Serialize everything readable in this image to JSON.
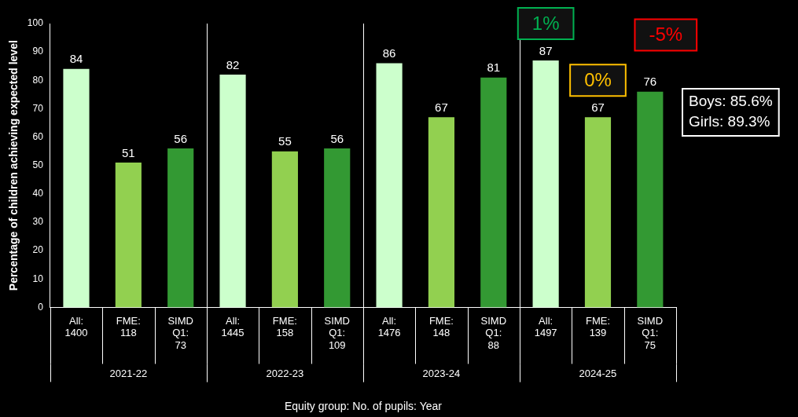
{
  "chart_data": {
    "type": "bar",
    "xlabel": "Equity group: No. of pupils: Year",
    "ylabel": "Percentage of children achieving expected level",
    "categories": [
      "All: 1400",
      "FME: 118",
      "SIMD Q1: 73",
      "All: 1445",
      "FME: 158",
      "SIMD Q1: 109",
      "All: 1476",
      "FME: 148",
      "SIMD Q1: 88",
      "All: 1497",
      "FME: 139",
      "SIMD Q1: 75"
    ],
    "values": [
      84,
      51,
      56,
      82,
      55,
      56,
      86,
      67,
      81,
      87,
      67,
      76
    ],
    "colors": [
      "#ccffcc",
      "#92d050",
      "#339933",
      "#ccffcc",
      "#92d050",
      "#339933",
      "#ccffcc",
      "#92d050",
      "#339933",
      "#ccffcc",
      "#92d050",
      "#339933"
    ],
    "ylim": [
      0,
      100
    ],
    "yticks": [
      0,
      10,
      20,
      30,
      40,
      50,
      60,
      70,
      80,
      90,
      100
    ],
    "grid": false,
    "legend": false,
    "data_labels": true,
    "annotations": [
      "2021-22",
      "2022-23",
      "2023-24",
      "2024-25",
      "1%",
      "0%",
      "-5%",
      "Boys: 85.6%\nGirls: 89.3%"
    ]
  }
}
